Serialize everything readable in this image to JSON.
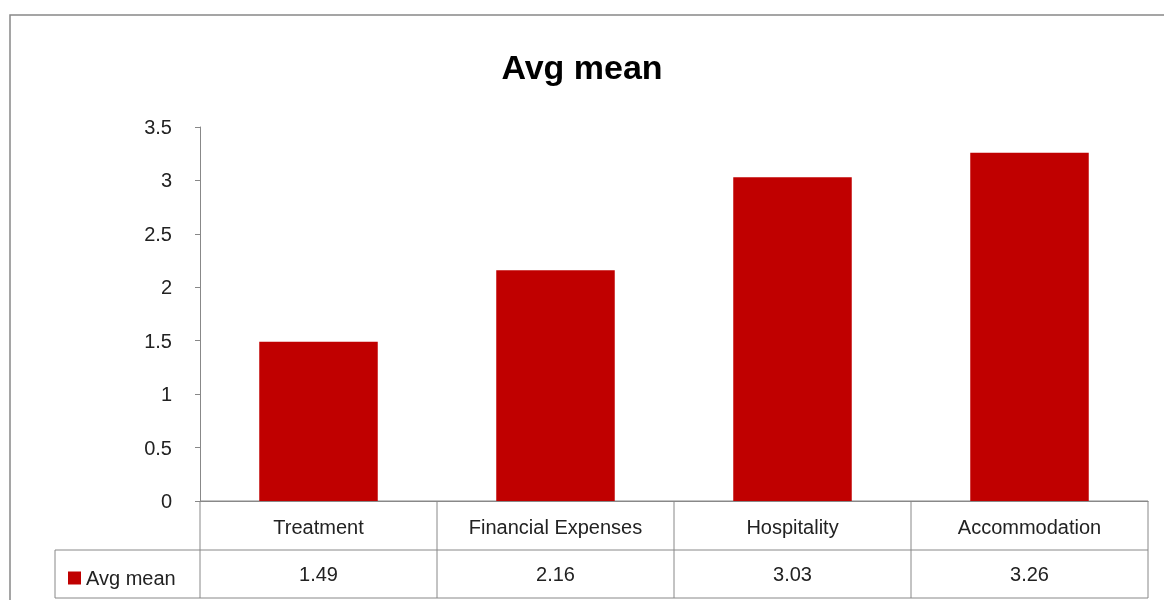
{
  "chart_data": {
    "type": "bar",
    "title": "Avg mean",
    "categories": [
      "Treatment",
      "Financial Expenses",
      "Hospitality",
      "Accommodation"
    ],
    "series": [
      {
        "name": "Avg mean",
        "color": "#c00000",
        "values": [
          1.49,
          2.16,
          3.03,
          3.26
        ]
      }
    ],
    "ylim": [
      0,
      3.5
    ],
    "yticks": [
      0,
      0.5,
      1,
      1.5,
      2,
      2.5,
      3,
      3.5
    ],
    "grid": false,
    "legend": "bottom",
    "data_labels": true
  }
}
